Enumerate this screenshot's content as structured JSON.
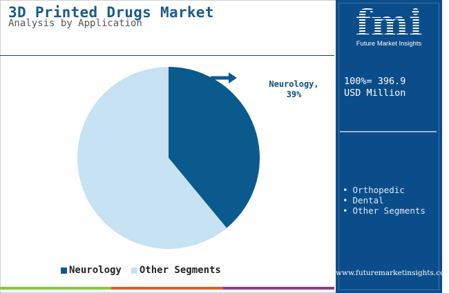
{
  "header": {
    "title": "3D Printed Drugs Market",
    "subtitle": "Analysis by Application"
  },
  "chart_data": {
    "type": "pie",
    "categories": [
      "Neurology",
      "Other Segments"
    ],
    "values": [
      39,
      61
    ],
    "colors": [
      "#0b5a8e",
      "#c6e2f3"
    ],
    "callout": {
      "label": "Neurology,",
      "value": "39%"
    },
    "legend": [
      "Neurology",
      "Other Segments"
    ],
    "legend_placement": "bottom"
  },
  "sidebar": {
    "logo_text": "fmi",
    "logo_caption": "Future Market Insights",
    "total_line1": "100%= 396.9",
    "total_line2": "USD Million",
    "segments": [
      "Orthopedic",
      "Dental",
      "Other Segments"
    ],
    "website": "www.futuremarketinsights.com",
    "bg_color": "#0b4d8a"
  },
  "bottom_bar_colors": [
    "#8cc63f",
    "#e05a2b",
    "#8e3b8f"
  ]
}
